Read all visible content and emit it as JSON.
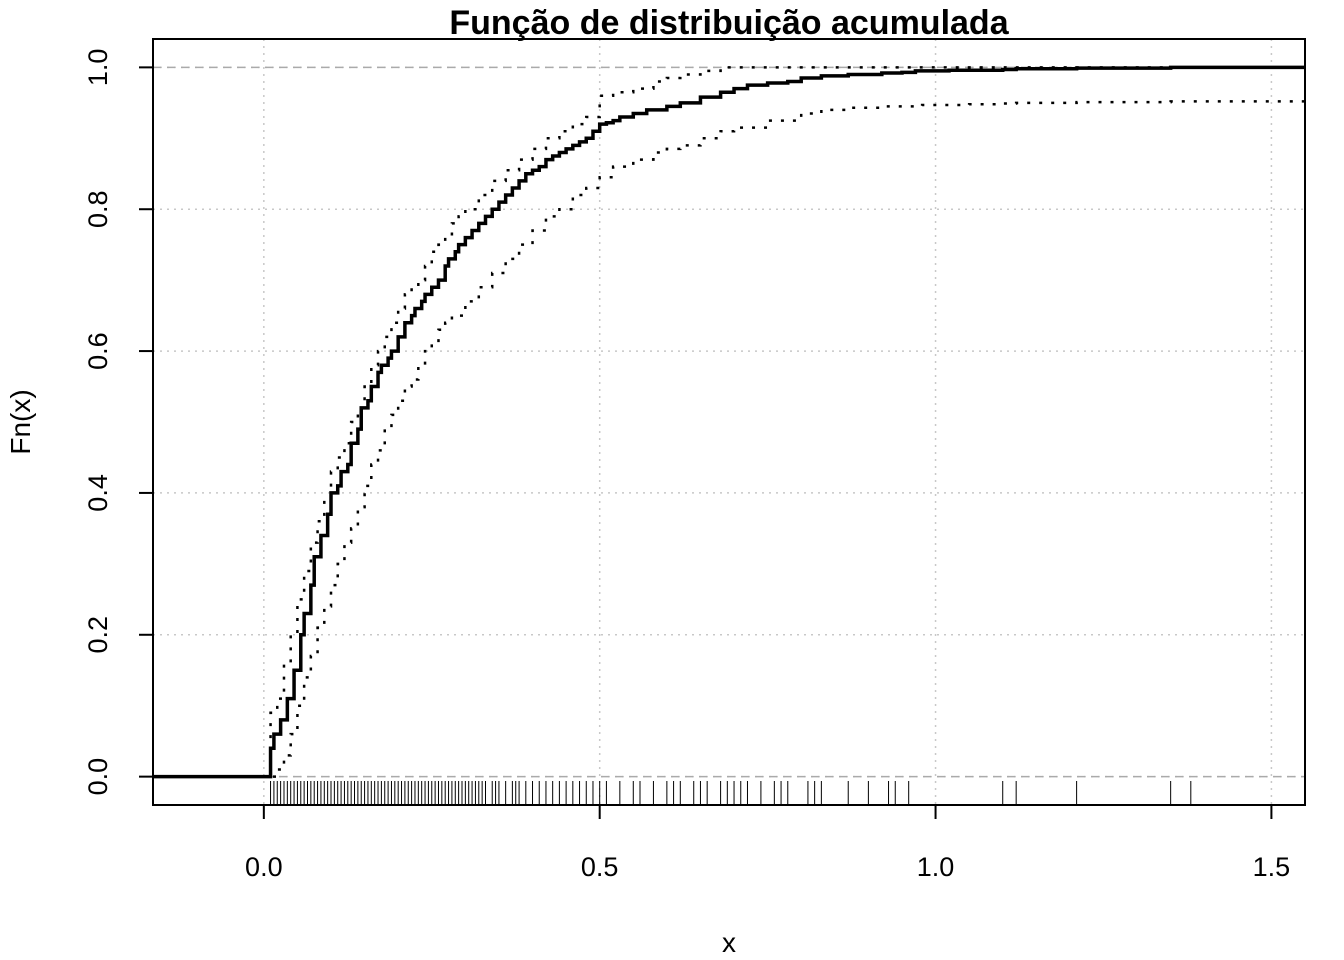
{
  "chart_data": {
    "type": "line",
    "title": "Função de distribuição acumulada",
    "xlabel": "x",
    "ylabel": "Fn(x)",
    "xlim": [
      -0.165,
      1.55
    ],
    "ylim": [
      -0.04,
      1.04
    ],
    "x_ticks": [
      0.0,
      0.5,
      1.0,
      1.5
    ],
    "x_tick_labels": [
      "0.0",
      "0.5",
      "1.0",
      "1.5"
    ],
    "y_ticks": [
      0.0,
      0.2,
      0.4,
      0.6,
      0.8,
      1.0
    ],
    "y_tick_labels": [
      "0.0",
      "0.2",
      "0.4",
      "0.6",
      "0.8",
      "1.0"
    ],
    "grid": true,
    "reference_lines": [
      0,
      1
    ],
    "series": [
      {
        "style": "step-solid",
        "x": [
          0.01,
          0.015,
          0.025,
          0.035,
          0.045,
          0.055,
          0.06,
          0.07,
          0.075,
          0.085,
          0.095,
          0.1,
          0.11,
          0.115,
          0.125,
          0.13,
          0.14,
          0.145,
          0.155,
          0.16,
          0.17,
          0.175,
          0.185,
          0.19,
          0.2,
          0.21,
          0.22,
          0.225,
          0.235,
          0.24,
          0.25,
          0.26,
          0.27,
          0.275,
          0.285,
          0.29,
          0.3,
          0.31,
          0.32,
          0.33,
          0.34,
          0.35,
          0.36,
          0.37,
          0.38,
          0.39,
          0.4,
          0.41,
          0.42,
          0.43,
          0.44,
          0.45,
          0.46,
          0.47,
          0.48,
          0.49,
          0.5,
          0.51,
          0.52,
          0.53,
          0.55,
          0.57,
          0.6,
          0.62,
          0.65,
          0.68,
          0.7,
          0.72,
          0.75,
          0.78,
          0.8,
          0.83,
          0.87,
          0.92,
          0.95,
          0.97,
          1.02,
          1.1,
          1.12,
          1.21,
          1.35,
          1.38
        ],
        "y": [
          0.04,
          0.06,
          0.08,
          0.11,
          0.15,
          0.2,
          0.23,
          0.27,
          0.31,
          0.34,
          0.37,
          0.4,
          0.41,
          0.43,
          0.44,
          0.47,
          0.49,
          0.52,
          0.53,
          0.55,
          0.57,
          0.58,
          0.59,
          0.6,
          0.62,
          0.64,
          0.65,
          0.66,
          0.67,
          0.68,
          0.69,
          0.7,
          0.72,
          0.73,
          0.74,
          0.75,
          0.76,
          0.77,
          0.78,
          0.79,
          0.8,
          0.81,
          0.82,
          0.83,
          0.84,
          0.85,
          0.855,
          0.86,
          0.87,
          0.875,
          0.88,
          0.885,
          0.89,
          0.895,
          0.9,
          0.91,
          0.92,
          0.922,
          0.925,
          0.93,
          0.935,
          0.94,
          0.945,
          0.95,
          0.958,
          0.965,
          0.97,
          0.975,
          0.978,
          0.98,
          0.985,
          0.988,
          0.99,
          0.992,
          0.993,
          0.995,
          0.996,
          0.997,
          0.998,
          0.999,
          1.0,
          1.0
        ]
      },
      {
        "style": "dotted-upper",
        "x": [
          0.01,
          0.02,
          0.03,
          0.04,
          0.05,
          0.06,
          0.07,
          0.08,
          0.09,
          0.1,
          0.11,
          0.12,
          0.13,
          0.14,
          0.15,
          0.16,
          0.17,
          0.18,
          0.19,
          0.2,
          0.21,
          0.22,
          0.23,
          0.24,
          0.25,
          0.26,
          0.27,
          0.28,
          0.29,
          0.3,
          0.32,
          0.34,
          0.36,
          0.38,
          0.4,
          0.42,
          0.44,
          0.46,
          0.48,
          0.5,
          0.52,
          0.55,
          0.58,
          0.6,
          0.62,
          0.65,
          0.68,
          0.7,
          0.75,
          0.8,
          0.85,
          0.9,
          1.0,
          1.1,
          1.2,
          1.3,
          1.38
        ],
        "y": [
          0.09,
          0.11,
          0.16,
          0.2,
          0.25,
          0.29,
          0.33,
          0.36,
          0.39,
          0.43,
          0.45,
          0.47,
          0.5,
          0.52,
          0.55,
          0.58,
          0.6,
          0.62,
          0.64,
          0.66,
          0.68,
          0.69,
          0.7,
          0.72,
          0.74,
          0.75,
          0.76,
          0.78,
          0.79,
          0.8,
          0.82,
          0.84,
          0.855,
          0.87,
          0.885,
          0.9,
          0.91,
          0.92,
          0.93,
          0.96,
          0.965,
          0.97,
          0.98,
          0.985,
          0.99,
          0.995,
          1.0,
          1.0,
          1.0,
          1.0,
          1.0,
          1.0,
          1.0,
          1.0,
          1.0,
          1.0,
          1.0
        ]
      },
      {
        "style": "dotted-lower",
        "x": [
          0.02,
          0.03,
          0.04,
          0.05,
          0.06,
          0.07,
          0.08,
          0.09,
          0.1,
          0.11,
          0.12,
          0.13,
          0.14,
          0.15,
          0.16,
          0.17,
          0.18,
          0.19,
          0.2,
          0.21,
          0.22,
          0.23,
          0.24,
          0.25,
          0.26,
          0.27,
          0.28,
          0.3,
          0.32,
          0.34,
          0.36,
          0.38,
          0.4,
          0.42,
          0.44,
          0.46,
          0.48,
          0.5,
          0.52,
          0.55,
          0.58,
          0.6,
          0.62,
          0.65,
          0.68,
          0.7,
          0.75,
          0.8,
          0.83,
          0.87,
          0.92,
          0.98,
          1.05,
          1.1,
          1.12,
          1.21,
          1.35,
          1.38
        ],
        "y": [
          0.01,
          0.03,
          0.06,
          0.1,
          0.14,
          0.17,
          0.21,
          0.24,
          0.27,
          0.3,
          0.33,
          0.35,
          0.38,
          0.41,
          0.44,
          0.46,
          0.49,
          0.51,
          0.53,
          0.55,
          0.56,
          0.58,
          0.6,
          0.61,
          0.63,
          0.64,
          0.65,
          0.67,
          0.69,
          0.71,
          0.73,
          0.75,
          0.77,
          0.79,
          0.8,
          0.82,
          0.83,
          0.845,
          0.86,
          0.87,
          0.88,
          0.885,
          0.89,
          0.9,
          0.91,
          0.915,
          0.925,
          0.935,
          0.94,
          0.943,
          0.945,
          0.947,
          0.948,
          0.949,
          0.95,
          0.951,
          0.952,
          0.952
        ]
      }
    ],
    "rug": [
      0.01,
      0.015,
      0.02,
      0.025,
      0.03,
      0.035,
      0.04,
      0.045,
      0.05,
      0.055,
      0.06,
      0.065,
      0.07,
      0.075,
      0.08,
      0.085,
      0.09,
      0.095,
      0.1,
      0.105,
      0.11,
      0.115,
      0.12,
      0.125,
      0.13,
      0.135,
      0.14,
      0.145,
      0.15,
      0.155,
      0.16,
      0.165,
      0.17,
      0.175,
      0.18,
      0.185,
      0.19,
      0.195,
      0.2,
      0.205,
      0.21,
      0.215,
      0.22,
      0.225,
      0.23,
      0.235,
      0.24,
      0.245,
      0.25,
      0.255,
      0.26,
      0.265,
      0.27,
      0.275,
      0.28,
      0.285,
      0.29,
      0.295,
      0.3,
      0.305,
      0.31,
      0.315,
      0.32,
      0.325,
      0.33,
      0.34,
      0.345,
      0.35,
      0.36,
      0.37,
      0.375,
      0.38,
      0.39,
      0.4,
      0.41,
      0.42,
      0.43,
      0.44,
      0.45,
      0.46,
      0.47,
      0.48,
      0.49,
      0.5,
      0.51,
      0.53,
      0.55,
      0.56,
      0.58,
      0.6,
      0.61,
      0.62,
      0.64,
      0.65,
      0.66,
      0.68,
      0.69,
      0.7,
      0.71,
      0.72,
      0.74,
      0.76,
      0.77,
      0.78,
      0.81,
      0.82,
      0.83,
      0.87,
      0.9,
      0.93,
      0.94,
      0.96,
      1.1,
      1.12,
      1.21,
      1.35,
      1.38
    ]
  }
}
